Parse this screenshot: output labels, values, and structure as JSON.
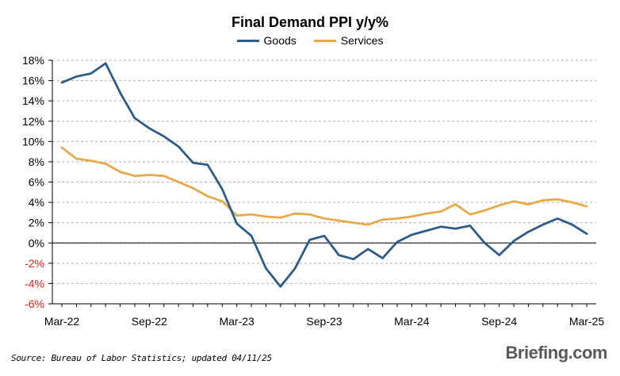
{
  "chart_data": {
    "type": "line",
    "title": "Final Demand PPI y/y%",
    "xlabel": "",
    "ylabel": "",
    "ylim": [
      -6,
      18
    ],
    "yticks": [
      -6,
      -4,
      -2,
      0,
      2,
      4,
      6,
      8,
      10,
      12,
      14,
      16,
      18
    ],
    "ytick_labels": [
      "-6%",
      "-4%",
      "-2%",
      "0%",
      "2%",
      "4%",
      "6%",
      "8%",
      "10%",
      "12%",
      "14%",
      "16%",
      "18%"
    ],
    "negative_tick_color": "#e8201a",
    "x": [
      "2022-03",
      "2022-04",
      "2022-05",
      "2022-06",
      "2022-07",
      "2022-08",
      "2022-09",
      "2022-10",
      "2022-11",
      "2022-12",
      "2023-01",
      "2023-02",
      "2023-03",
      "2023-04",
      "2023-05",
      "2023-06",
      "2023-07",
      "2023-08",
      "2023-09",
      "2023-10",
      "2023-11",
      "2023-12",
      "2024-01",
      "2024-02",
      "2024-03",
      "2024-04",
      "2024-05",
      "2024-06",
      "2024-07",
      "2024-08",
      "2024-09",
      "2024-10",
      "2024-11",
      "2024-12",
      "2025-01",
      "2025-02",
      "2025-03"
    ],
    "xtick_labels": [
      "Mar-22",
      "Sep-22",
      "Mar-23",
      "Sep-23",
      "Mar-24",
      "Sep-24",
      "Mar-25"
    ],
    "xtick_positions": [
      0,
      6,
      12,
      18,
      24,
      30,
      36
    ],
    "grid": true,
    "legend_position": "top-center",
    "series": [
      {
        "name": "Goods",
        "color": "#2e5c8a",
        "values": [
          15.8,
          16.4,
          16.7,
          17.7,
          14.8,
          12.3,
          11.3,
          10.5,
          9.5,
          7.9,
          7.7,
          5.3,
          1.9,
          0.7,
          -2.5,
          -4.3,
          -2.5,
          0.3,
          0.7,
          -1.2,
          -1.6,
          -0.6,
          -1.5,
          0.1,
          0.8,
          1.2,
          1.6,
          1.4,
          1.7,
          0.0,
          -1.2,
          0.2,
          1.1,
          1.8,
          2.4,
          1.8,
          0.9
        ]
      },
      {
        "name": "Services",
        "color": "#e8a94a",
        "values": [
          9.4,
          8.3,
          8.1,
          7.8,
          7.0,
          6.6,
          6.7,
          6.6,
          6.0,
          5.4,
          4.6,
          4.1,
          2.7,
          2.8,
          2.6,
          2.5,
          2.9,
          2.8,
          2.4,
          2.2,
          2.0,
          1.8,
          2.3,
          2.4,
          2.6,
          2.9,
          3.1,
          3.8,
          2.8,
          3.2,
          3.7,
          4.1,
          3.8,
          4.2,
          4.3,
          4.0,
          3.6
        ]
      }
    ]
  },
  "source_note": "Source: Bureau of Labor Statistics; updated 04/11/25",
  "brand": "Briefing.com"
}
